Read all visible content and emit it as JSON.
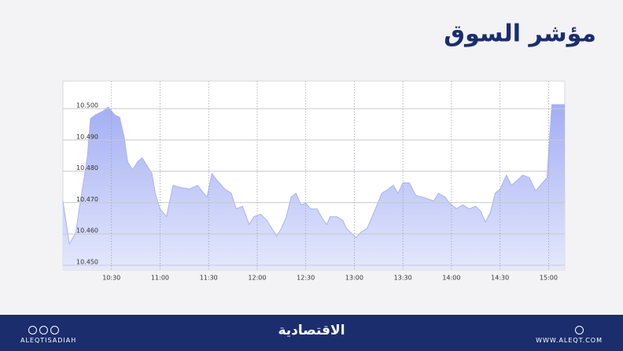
{
  "chart_data": {
    "type": "area",
    "title": "مؤشر السوق",
    "x": [
      "10:00",
      "10:04",
      "10:08",
      "10:10",
      "10:12",
      "10:15",
      "10:17",
      "10:20",
      "10:25",
      "10:28",
      "10:32",
      "10:35",
      "10:38",
      "10:40",
      "10:43",
      "10:46",
      "10:49",
      "10:52",
      "10:55",
      "10:57",
      "11:00",
      "11:04",
      "11:06",
      "11:08",
      "11:13",
      "11:18",
      "11:23",
      "11:27",
      "11:29",
      "11:32",
      "11:35",
      "11:40",
      "11:44",
      "11:47",
      "11:51",
      "11:55",
      "11:58",
      "12:02",
      "12:06",
      "12:09",
      "12:12",
      "12:15",
      "12:18",
      "12:21",
      "12:24",
      "12:27",
      "12:30",
      "12:33",
      "12:37",
      "12:41",
      "12:43",
      "12:45",
      "12:49",
      "12:53",
      "12:55",
      "12:59",
      "13:01",
      "13:04",
      "13:08",
      "13:10",
      "13:13",
      "13:17",
      "13:21",
      "13:24",
      "13:27",
      "13:30",
      "13:34",
      "13:38",
      "13:42",
      "13:45",
      "13:49",
      "13:52",
      "13:56",
      "13:59",
      "14:03",
      "14:07",
      "14:11",
      "14:15",
      "14:18",
      "14:21",
      "14:24",
      "14:27",
      "14:30",
      "14:34",
      "14:37",
      "14:41",
      "14:44",
      "14:48",
      "14:52",
      "14:55",
      "14:59",
      "15:02",
      "15:10"
    ],
    "series": [
      {
        "name": "مؤشر السوق",
        "color": "#a9b4f5",
        "values": [
          10.4705,
          10.4568,
          10.4605,
          10.468,
          10.4743,
          10.4843,
          10.4968,
          10.498,
          10.4993,
          10.5005,
          10.498,
          10.4973,
          10.4905,
          10.483,
          10.4805,
          10.483,
          10.4843,
          10.4818,
          10.4793,
          10.473,
          10.468,
          10.4655,
          10.4705,
          10.4755,
          10.4748,
          10.4743,
          10.4755,
          10.473,
          10.4718,
          10.4793,
          10.4773,
          10.4743,
          10.473,
          10.468,
          10.4688,
          10.463,
          10.4655,
          10.4663,
          10.4643,
          10.4618,
          10.4593,
          10.4618,
          10.4655,
          10.4718,
          10.473,
          10.4693,
          10.4698,
          10.468,
          10.468,
          10.4643,
          10.463,
          10.4655,
          10.4655,
          10.4643,
          10.4618,
          10.4598,
          10.4588,
          10.4605,
          10.4618,
          10.4643,
          10.468,
          10.473,
          10.4743,
          10.4755,
          10.473,
          10.4763,
          10.4763,
          10.4723,
          10.4718,
          10.4713,
          10.4705,
          10.473,
          10.4718,
          10.4698,
          10.468,
          10.4693,
          10.468,
          10.4688,
          10.4673,
          10.4638,
          10.4668,
          10.473,
          10.4743,
          10.4788,
          10.4755,
          10.4773,
          10.4788,
          10.478,
          10.4738,
          10.4755,
          10.478,
          10.5013,
          10.5013
        ]
      }
    ],
    "xlim": [
      "10:00",
      "15:10"
    ],
    "xticks": [
      "10:30",
      "11:00",
      "11:30",
      "12:00",
      "12:30",
      "13:00",
      "13:30",
      "14:00",
      "14:30",
      "15:00"
    ],
    "ylim": [
      10.4485,
      10.5088
    ],
    "yticks": [
      {
        "value": 10.45,
        "label": "10.450"
      },
      {
        "value": 10.46,
        "label": "10.460"
      },
      {
        "value": 10.47,
        "label": "10.470"
      },
      {
        "value": 10.48,
        "label": "10.480"
      },
      {
        "value": 10.49,
        "label": "10.490"
      },
      {
        "value": 10.5,
        "label": "10.500"
      }
    ],
    "grid": true
  },
  "footer": {
    "handle": "ALEQTISADIAH",
    "logo": "الاقتصادية",
    "website": "WWW.ALEQT.COM"
  }
}
